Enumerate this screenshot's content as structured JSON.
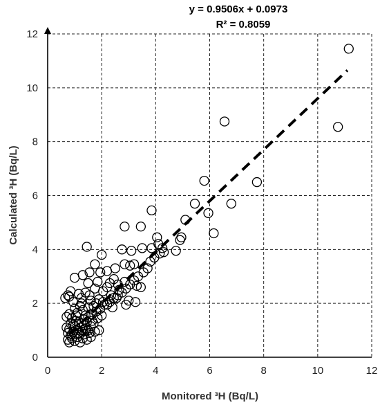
{
  "chart_data": {
    "type": "scatter",
    "title": "",
    "xlabel": "Monitored ³H (Bq/L)",
    "ylabel": "Calculated ³H (Bq/L)",
    "xlim": [
      0,
      12
    ],
    "ylim": [
      0,
      12
    ],
    "xticks": [
      "0",
      "2",
      "4",
      "6",
      "8",
      "10",
      "12"
    ],
    "yticks": [
      "0",
      "2",
      "4",
      "6",
      "8",
      "10",
      "12"
    ],
    "grid": true,
    "annotations": {
      "equation": "y = 0.9506x + 0.0973",
      "r2": "R² = 0.8059"
    },
    "trendline": {
      "slope": 0.9506,
      "intercept": 0.0973,
      "x_range": [
        0.8,
        11.1
      ],
      "style": "dashed"
    },
    "points": [
      [
        11.15,
        11.45
      ],
      [
        10.75,
        8.55
      ],
      [
        6.55,
        8.75
      ],
      [
        7.75,
        6.5
      ],
      [
        6.8,
        5.7
      ],
      [
        5.8,
        6.55
      ],
      [
        5.95,
        5.35
      ],
      [
        6.15,
        4.6
      ],
      [
        5.45,
        5.7
      ],
      [
        5.1,
        5.1
      ],
      [
        4.95,
        4.45
      ],
      [
        4.75,
        3.95
      ],
      [
        4.9,
        4.35
      ],
      [
        3.85,
        5.45
      ],
      [
        2.85,
        4.85
      ],
      [
        3.45,
        4.85
      ],
      [
        1.45,
        4.1
      ],
      [
        2.0,
        3.8
      ],
      [
        1.75,
        3.45
      ],
      [
        2.75,
        4.0
      ],
      [
        3.1,
        3.95
      ],
      [
        3.5,
        4.05
      ],
      [
        3.85,
        4.05
      ],
      [
        4.05,
        4.45
      ],
      [
        4.1,
        4.2
      ],
      [
        4.25,
        4.05
      ],
      [
        4.3,
        3.9
      ],
      [
        4.15,
        3.85
      ],
      [
        3.95,
        3.7
      ],
      [
        3.8,
        3.55
      ],
      [
        3.7,
        3.3
      ],
      [
        3.55,
        3.15
      ],
      [
        3.35,
        3.0
      ],
      [
        3.2,
        2.85
      ],
      [
        3.05,
        2.7
      ],
      [
        2.9,
        2.55
      ],
      [
        2.75,
        2.4
      ],
      [
        2.6,
        2.3
      ],
      [
        2.45,
        2.2
      ],
      [
        2.3,
        2.05
      ],
      [
        2.1,
        1.95
      ],
      [
        1.95,
        1.8
      ],
      [
        1.8,
        1.7
      ],
      [
        1.65,
        1.6
      ],
      [
        1.5,
        1.5
      ],
      [
        1.35,
        1.4
      ],
      [
        2.85,
        3.45
      ],
      [
        3.05,
        3.4
      ],
      [
        3.2,
        3.45
      ],
      [
        2.5,
        3.3
      ],
      [
        2.2,
        3.2
      ],
      [
        1.95,
        3.15
      ],
      [
        1.55,
        3.15
      ],
      [
        1.3,
        3.05
      ],
      [
        1.0,
        2.95
      ],
      [
        1.5,
        2.75
      ],
      [
        1.85,
        2.8
      ],
      [
        2.3,
        2.75
      ],
      [
        2.6,
        2.7
      ],
      [
        2.85,
        2.8
      ],
      [
        3.3,
        2.65
      ],
      [
        3.45,
        2.6
      ],
      [
        3.25,
        2.05
      ],
      [
        2.9,
        1.95
      ],
      [
        2.55,
        2.2
      ],
      [
        2.35,
        2.3
      ],
      [
        2.05,
        2.45
      ],
      [
        1.75,
        2.55
      ],
      [
        1.4,
        2.4
      ],
      [
        1.15,
        2.35
      ],
      [
        0.85,
        2.45
      ],
      [
        0.75,
        2.3
      ],
      [
        0.65,
        2.2
      ],
      [
        0.95,
        2.05
      ],
      [
        1.25,
        2.0
      ],
      [
        1.6,
        2.1
      ],
      [
        1.9,
        2.15
      ],
      [
        2.2,
        1.95
      ],
      [
        2.4,
        1.85
      ],
      [
        1.7,
        1.9
      ],
      [
        0.8,
        1.6
      ],
      [
        0.7,
        1.5
      ],
      [
        0.9,
        1.45
      ],
      [
        1.1,
        1.65
      ],
      [
        1.3,
        1.75
      ],
      [
        1.5,
        1.85
      ],
      [
        1.2,
        1.9
      ],
      [
        1.0,
        1.8
      ],
      [
        0.85,
        1.25
      ],
      [
        1.05,
        1.35
      ],
      [
        1.25,
        1.25
      ],
      [
        1.45,
        1.3
      ],
      [
        1.65,
        1.35
      ],
      [
        1.85,
        1.45
      ],
      [
        2.0,
        1.55
      ],
      [
        1.6,
        1.15
      ],
      [
        1.4,
        1.05
      ],
      [
        1.2,
        1.1
      ],
      [
        1.0,
        1.15
      ],
      [
        0.8,
        1.05
      ],
      [
        0.75,
        0.9
      ],
      [
        0.95,
        0.95
      ],
      [
        1.15,
        0.9
      ],
      [
        1.35,
        0.85
      ],
      [
        1.55,
        0.9
      ],
      [
        1.75,
        0.95
      ],
      [
        1.3,
        0.7
      ],
      [
        1.1,
        0.75
      ],
      [
        0.9,
        0.7
      ],
      [
        0.75,
        0.65
      ],
      [
        0.8,
        0.55
      ],
      [
        1.0,
        0.6
      ],
      [
        1.2,
        0.55
      ],
      [
        1.45,
        0.65
      ],
      [
        1.6,
        0.75
      ],
      [
        0.85,
        0.8
      ],
      [
        1.05,
        1.0
      ],
      [
        1.25,
        0.95
      ],
      [
        1.5,
        1.0
      ],
      [
        0.95,
        1.2
      ],
      [
        1.15,
        1.3
      ],
      [
        1.35,
        1.2
      ],
      [
        0.7,
        1.1
      ],
      [
        1.9,
        1.0
      ],
      [
        1.7,
        1.25
      ],
      [
        0.9,
        0.85
      ],
      [
        1.1,
        0.85
      ],
      [
        1.3,
        1.0
      ],
      [
        1.6,
        1.6
      ],
      [
        1.4,
        1.55
      ],
      [
        2.05,
        2.05
      ],
      [
        2.65,
        2.5
      ],
      [
        3.0,
        2.1
      ],
      [
        2.2,
        2.6
      ],
      [
        1.55,
        2.3
      ],
      [
        1.25,
        2.2
      ],
      [
        0.8,
        2.25
      ],
      [
        1.05,
        1.55
      ],
      [
        1.8,
        2.0
      ],
      [
        2.45,
        2.9
      ]
    ]
  }
}
